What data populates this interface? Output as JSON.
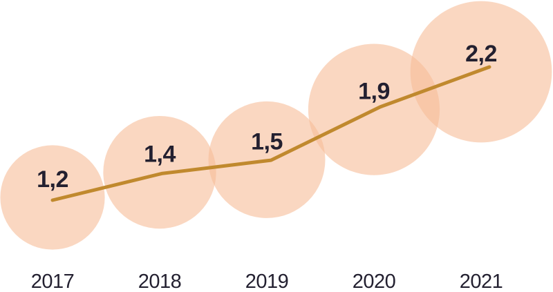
{
  "chart_data": {
    "type": "bubble-line",
    "title": "",
    "categories": [
      "2017",
      "2018",
      "2019",
      "2020",
      "2021"
    ],
    "values": [
      1.2,
      1.4,
      1.5,
      1.9,
      2.2
    ],
    "value_labels": [
      "1,2",
      "1,4",
      "1,5",
      "1,9",
      "2,2"
    ],
    "decimal_separator": ",",
    "series": [
      {
        "name": "trend",
        "values": [
          1.2,
          1.4,
          1.5,
          1.9,
          2.2
        ]
      }
    ],
    "ylim": [
      1.0,
      2.4
    ],
    "grid": false,
    "axes_visible": false,
    "legend_position": "none",
    "bubble_area_proportional_to_value": true,
    "colors": {
      "bubble_fill": "#F6BD97",
      "bubble_opacity": 0.6,
      "line": "#C0892E",
      "value_label_color": "#232030",
      "axis_label_color": "#232030",
      "background": "#FFFFFF"
    }
  }
}
